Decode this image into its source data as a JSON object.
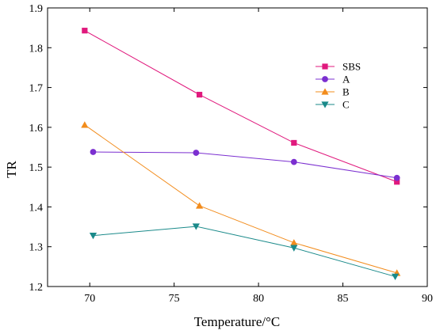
{
  "chart_data": {
    "type": "line",
    "title": "",
    "xlabel": "Temperature/°C",
    "ylabel": "TR",
    "xlim": [
      67.5,
      90
    ],
    "ylim": [
      1.2,
      1.9
    ],
    "xticks": [
      70,
      75,
      80,
      85,
      90
    ],
    "yticks": [
      1.2,
      1.3,
      1.4,
      1.5,
      1.6,
      1.7,
      1.8,
      1.9
    ],
    "xtick_labels": [
      "70",
      "75",
      "80",
      "85",
      "90"
    ],
    "ytick_labels": [
      "1.2",
      "1.3",
      "1.4",
      "1.5",
      "1.6",
      "1.7",
      "1.8",
      "1.9"
    ],
    "grid": false,
    "legend_position": "top-right",
    "series": [
      {
        "name": "SBS",
        "marker": "square",
        "color": "#e0197d",
        "x": [
          69.7,
          76.5,
          82.1,
          88.2
        ],
        "y": [
          1.843,
          1.682,
          1.561,
          1.463
        ]
      },
      {
        "name": "A",
        "marker": "circle",
        "color": "#7b2fd0",
        "x": [
          70.2,
          76.3,
          82.1,
          88.2
        ],
        "y": [
          1.538,
          1.536,
          1.513,
          1.473
        ]
      },
      {
        "name": "B",
        "marker": "triangle-up",
        "color": "#f28c1c",
        "x": [
          69.7,
          76.5,
          82.1,
          88.2
        ],
        "y": [
          1.606,
          1.403,
          1.31,
          1.234
        ]
      },
      {
        "name": "C",
        "marker": "triangle-down",
        "color": "#1a8a8a",
        "x": [
          70.2,
          76.3,
          82.1,
          88.1
        ],
        "y": [
          1.328,
          1.351,
          1.297,
          1.225
        ]
      }
    ]
  }
}
